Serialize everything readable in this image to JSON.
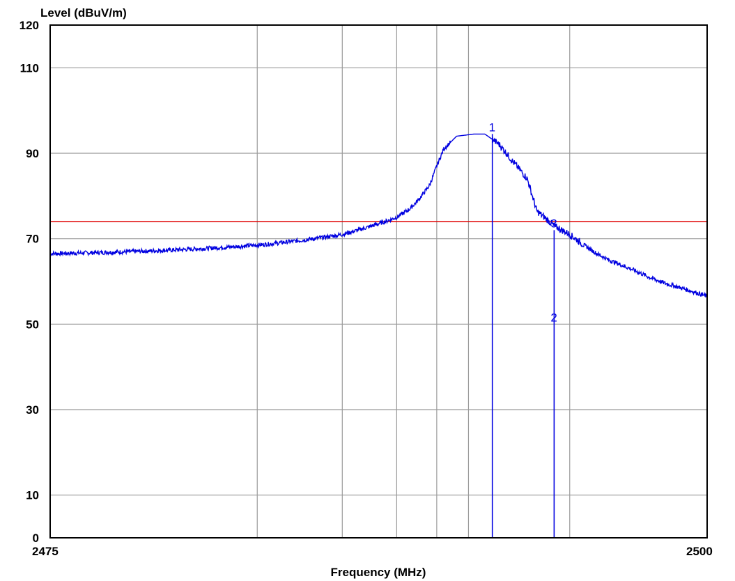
{
  "chart_data": {
    "type": "line",
    "title": "",
    "xlabel": "Frequency (MHz)",
    "ylabel": "Level (dBuV/m)",
    "xlim": [
      2475,
      2500
    ],
    "ylim": [
      0,
      120
    ],
    "log_x": true,
    "grid": true,
    "x_tick_labels": [
      "2475",
      "2500"
    ],
    "y_ticks": [
      0,
      10,
      30,
      50,
      70,
      90,
      110,
      120
    ],
    "y_tick_labels": [
      "0",
      "10",
      "30",
      "50",
      "70",
      "90",
      "110",
      "120"
    ],
    "x_grid_lines": [
      2476,
      2477,
      2478,
      2479,
      2480,
      2485,
      2500
    ],
    "limit_line": {
      "level": 74,
      "color": "#e00000"
    },
    "series": [
      {
        "color": "#0000e0",
        "x": [
          2475,
          2476,
          2477,
          2477.5,
          2478,
          2478.3,
          2478.5,
          2478.8,
          2479,
          2479.2,
          2479.6,
          2480.2,
          2480.6,
          2481.2,
          2481.8,
          2482.5,
          2483,
          2484,
          2485,
          2486,
          2487,
          2488,
          2490,
          2492,
          2494,
          2496,
          2498,
          2500
        ],
        "y": [
          66.5,
          68.5,
          71,
          73,
          75,
          77,
          79,
          82.5,
          87,
          91,
          94,
          94.5,
          94.5,
          92,
          88,
          84,
          76.5,
          73,
          71,
          68.5,
          66.5,
          65,
          63,
          61,
          59.5,
          58.5,
          57.5,
          56.5
        ]
      }
    ],
    "markers": [
      {
        "label": "1",
        "x": 2480.9,
        "level": 94.5,
        "color": "#0000e0"
      },
      {
        "label": "2",
        "x": 2484,
        "level": 50,
        "color": "#0000e0"
      },
      {
        "label": "3",
        "x": 2484,
        "level": 72,
        "color": "#0000e0"
      }
    ]
  }
}
